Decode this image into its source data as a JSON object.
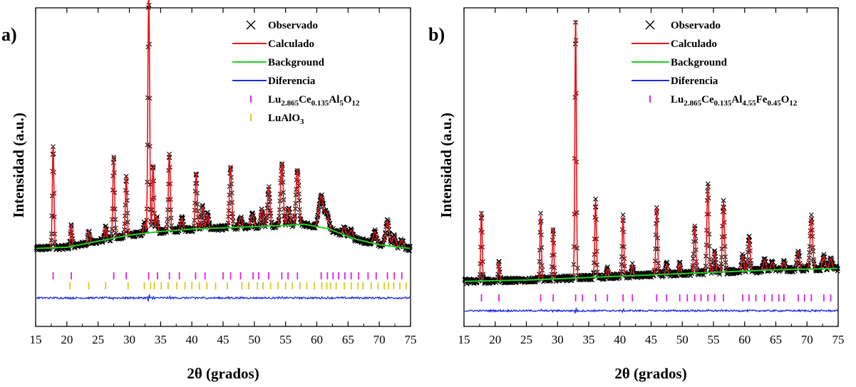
{
  "colors": {
    "observed": "#000000",
    "calculated": "#e8141a",
    "background": "#20d020",
    "difference": "#1a2ce0",
    "bragg_main": "#e020e0",
    "bragg_secondary": "#d8cc20"
  },
  "chart_data": [
    {
      "panel_label": "a)",
      "type": "line",
      "xlabel": "2θ (grados)",
      "ylabel": "Intensidad (a.u.)",
      "xlim": [
        15,
        75
      ],
      "x_ticks": [
        "15",
        "20",
        "25",
        "30",
        "35",
        "40",
        "45",
        "50",
        "55",
        "60",
        "65",
        "70",
        "75"
      ],
      "y_ticks_shown": false,
      "grid": false,
      "legend_position": "top-right",
      "legend": [
        {
          "key": "observed",
          "label": "Observado",
          "marker": "x"
        },
        {
          "key": "calculated",
          "label": "Calculado",
          "marker": "line"
        },
        {
          "key": "background",
          "label": "Background",
          "marker": "line"
        },
        {
          "key": "difference",
          "label": "Diferencia",
          "marker": "line"
        },
        {
          "key": "bragg_main",
          "label_parts": [
            [
              "Lu",
              "n"
            ],
            [
              "2.865",
              "sub"
            ],
            [
              "Ce",
              "n"
            ],
            [
              "0.135",
              "sub"
            ],
            [
              "Al",
              "n"
            ],
            [
              "5",
              "sub"
            ],
            [
              "O",
              "n"
            ],
            [
              "12",
              "sub"
            ]
          ],
          "marker": "tick"
        },
        {
          "key": "bragg_secondary",
          "label_parts": [
            [
              "LuAlO",
              "n"
            ],
            [
              "3",
              "sub"
            ]
          ],
          "marker": "tick"
        }
      ],
      "background_curve": [
        [
          15,
          0.06
        ],
        [
          20,
          0.065
        ],
        [
          25,
          0.09
        ],
        [
          30,
          0.115
        ],
        [
          35,
          0.13
        ],
        [
          40,
          0.14
        ],
        [
          45,
          0.145
        ],
        [
          50,
          0.15
        ],
        [
          55,
          0.155
        ],
        [
          58,
          0.16
        ],
        [
          62,
          0.14
        ],
        [
          66,
          0.1
        ],
        [
          70,
          0.075
        ],
        [
          75,
          0.06
        ]
      ],
      "peaks": [
        {
          "x": 17.8,
          "height": 0.42,
          "width": 0.13
        },
        {
          "x": 20.7,
          "height": 0.09,
          "width": 0.13
        },
        {
          "x": 23.5,
          "height": 0.05,
          "width": 0.15
        },
        {
          "x": 26.2,
          "height": 0.05,
          "width": 0.15
        },
        {
          "x": 27.5,
          "height": 0.34,
          "width": 0.14
        },
        {
          "x": 29.5,
          "height": 0.24,
          "width": 0.14
        },
        {
          "x": 32.4,
          "height": 0.04,
          "width": 0.15
        },
        {
          "x": 33.1,
          "height": 1.0,
          "width": 0.14
        },
        {
          "x": 33.8,
          "height": 0.28,
          "width": 0.13
        },
        {
          "x": 34.4,
          "height": 0.06,
          "width": 0.15
        },
        {
          "x": 36.4,
          "height": 0.32,
          "width": 0.15
        },
        {
          "x": 38.4,
          "height": 0.05,
          "width": 0.2
        },
        {
          "x": 40.7,
          "height": 0.23,
          "width": 0.16
        },
        {
          "x": 41.7,
          "height": 0.09,
          "width": 0.16
        },
        {
          "x": 42.5,
          "height": 0.06,
          "width": 0.18
        },
        {
          "x": 46.2,
          "height": 0.25,
          "width": 0.18
        },
        {
          "x": 47.8,
          "height": 0.04,
          "width": 0.2
        },
        {
          "x": 49.7,
          "height": 0.05,
          "width": 0.2
        },
        {
          "x": 51.2,
          "height": 0.07,
          "width": 0.18
        },
        {
          "x": 52.3,
          "height": 0.16,
          "width": 0.2
        },
        {
          "x": 54.4,
          "height": 0.26,
          "width": 0.22
        },
        {
          "x": 55.5,
          "height": 0.07,
          "width": 0.2
        },
        {
          "x": 56.9,
          "height": 0.23,
          "width": 0.22
        },
        {
          "x": 60.7,
          "height": 0.13,
          "width": 0.35
        },
        {
          "x": 61.6,
          "height": 0.06,
          "width": 0.3
        },
        {
          "x": 64.4,
          "height": 0.03,
          "width": 0.25
        },
        {
          "x": 65.5,
          "height": 0.03,
          "width": 0.25
        },
        {
          "x": 69.3,
          "height": 0.05,
          "width": 0.25
        },
        {
          "x": 71.3,
          "height": 0.1,
          "width": 0.3
        },
        {
          "x": 72.4,
          "height": 0.04,
          "width": 0.25
        },
        {
          "x": 73.6,
          "height": 0.03,
          "width": 0.25
        }
      ],
      "bragg_main_positions": [
        17.8,
        20.7,
        27.5,
        29.5,
        33.1,
        34.5,
        36.4,
        38.0,
        40.6,
        42.1,
        45.0,
        46.2,
        47.8,
        49.8,
        50.7,
        52.3,
        54.4,
        55.4,
        56.9,
        60.7,
        61.7,
        62.6,
        63.5,
        64.5,
        65.5,
        66.7,
        68.2,
        69.5,
        71.3,
        72.4,
        73.6
      ],
      "bragg_secondary_positions": [
        20.5,
        23.5,
        26.2,
        29.8,
        32.4,
        33.4,
        34.0,
        35.1,
        36.2,
        37.6,
        38.9,
        40.0,
        41.2,
        42.4,
        43.8,
        45.7,
        48.0,
        49.1,
        50.5,
        51.4,
        52.6,
        53.8,
        55.0,
        56.1,
        57.3,
        58.4,
        59.6,
        60.8,
        61.6,
        62.2,
        63.1,
        64.4,
        65.5,
        66.6,
        67.4,
        68.7,
        69.8,
        70.8,
        71.5,
        72.3,
        73.3,
        74.3
      ]
    },
    {
      "panel_label": "b)",
      "type": "line",
      "xlabel": "2θ (grados)",
      "ylabel": "Intensidad (a.u.)",
      "xlim": [
        15,
        75
      ],
      "x_ticks": [
        "15",
        "20",
        "25",
        "30",
        "35",
        "40",
        "45",
        "50",
        "55",
        "60",
        "65",
        "70",
        "75"
      ],
      "y_ticks_shown": false,
      "grid": false,
      "legend_position": "top-right",
      "legend": [
        {
          "key": "observed",
          "label": "Observado",
          "marker": "x"
        },
        {
          "key": "calculated",
          "label": "Calculado",
          "marker": "line"
        },
        {
          "key": "background",
          "label": "Background",
          "marker": "line"
        },
        {
          "key": "difference",
          "label": "Diferencia",
          "marker": "line"
        },
        {
          "key": "bragg_main",
          "label_parts": [
            [
              "Lu",
              "n"
            ],
            [
              "2.865",
              "sub"
            ],
            [
              "Ce",
              "n"
            ],
            [
              "0.135",
              "sub"
            ],
            [
              "Al",
              "n"
            ],
            [
              "4.55",
              "sub"
            ],
            [
              "Fe",
              "n"
            ],
            [
              "0.45",
              "sub"
            ],
            [
              "O",
              "n"
            ],
            [
              "12",
              "sub"
            ]
          ],
          "marker": "tick"
        }
      ],
      "background_curve": [
        [
          15,
          0.02
        ],
        [
          25,
          0.025
        ],
        [
          35,
          0.035
        ],
        [
          45,
          0.045
        ],
        [
          55,
          0.055
        ],
        [
          65,
          0.065
        ],
        [
          75,
          0.07
        ]
      ],
      "peaks": [
        {
          "x": 17.8,
          "height": 0.27,
          "width": 0.12
        },
        {
          "x": 20.6,
          "height": 0.07,
          "width": 0.12
        },
        {
          "x": 27.3,
          "height": 0.25,
          "width": 0.12
        },
        {
          "x": 29.3,
          "height": 0.2,
          "width": 0.12
        },
        {
          "x": 32.9,
          "height": 1.0,
          "width": 0.12
        },
        {
          "x": 36.1,
          "height": 0.3,
          "width": 0.13
        },
        {
          "x": 38.0,
          "height": 0.03,
          "width": 0.15
        },
        {
          "x": 40.5,
          "height": 0.23,
          "width": 0.13
        },
        {
          "x": 42.0,
          "height": 0.04,
          "width": 0.14
        },
        {
          "x": 45.9,
          "height": 0.26,
          "width": 0.14
        },
        {
          "x": 47.5,
          "height": 0.04,
          "width": 0.15
        },
        {
          "x": 49.6,
          "height": 0.04,
          "width": 0.15
        },
        {
          "x": 52.0,
          "height": 0.18,
          "width": 0.16
        },
        {
          "x": 54.1,
          "height": 0.34,
          "width": 0.16
        },
        {
          "x": 55.2,
          "height": 0.08,
          "width": 0.16
        },
        {
          "x": 56.6,
          "height": 0.27,
          "width": 0.17
        },
        {
          "x": 59.7,
          "height": 0.06,
          "width": 0.18
        },
        {
          "x": 60.7,
          "height": 0.13,
          "width": 0.18
        },
        {
          "x": 63.2,
          "height": 0.04,
          "width": 0.2
        },
        {
          "x": 64.4,
          "height": 0.03,
          "width": 0.2
        },
        {
          "x": 66.3,
          "height": 0.03,
          "width": 0.2
        },
        {
          "x": 68.6,
          "height": 0.07,
          "width": 0.2
        },
        {
          "x": 70.7,
          "height": 0.2,
          "width": 0.2
        },
        {
          "x": 72.7,
          "height": 0.05,
          "width": 0.2
        },
        {
          "x": 73.8,
          "height": 0.04,
          "width": 0.2
        }
      ],
      "bragg_main_positions": [
        17.8,
        20.6,
        27.3,
        29.3,
        32.9,
        34.0,
        36.1,
        38.0,
        40.5,
        42.0,
        45.9,
        47.5,
        49.6,
        50.8,
        52.0,
        53.0,
        54.1,
        55.2,
        56.6,
        59.7,
        60.7,
        61.8,
        63.2,
        64.4,
        65.5,
        66.3,
        68.6,
        69.6,
        70.7,
        72.7,
        73.8
      ]
    }
  ]
}
